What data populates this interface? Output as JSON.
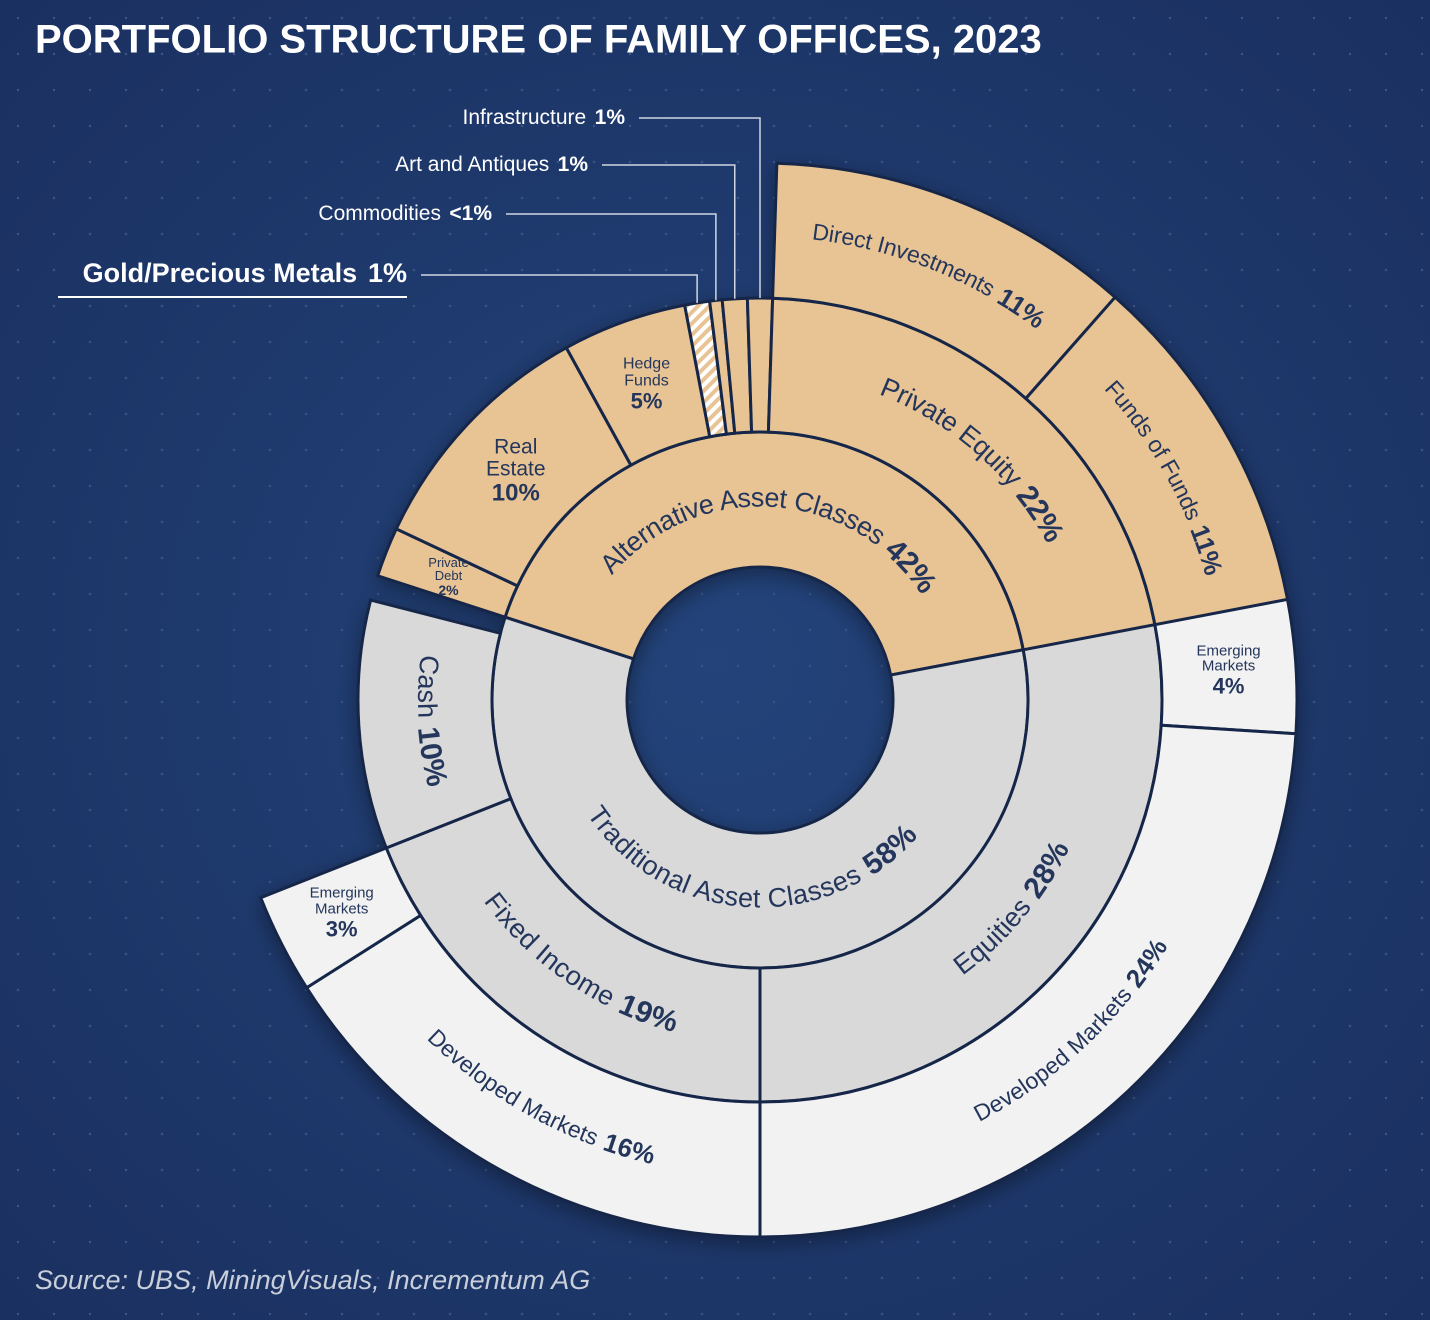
{
  "chart_data": {
    "type": "sunburst",
    "title": "PORTFOLIO STRUCTURE OF FAMILY OFFICES, 2023",
    "source": "Source: UBS, MiningVisuals, Incrementum AG",
    "nodes": [
      {
        "name": "Alternative Asset Classes",
        "value": 42,
        "value_label": "42%",
        "color": "#e8c494",
        "children": [
          {
            "name": "Private Debt",
            "value": 2,
            "value_label": "2%",
            "color": "#e8c494"
          },
          {
            "name": "Real Estate",
            "value": 10,
            "value_label": "10%",
            "color": "#e8c494"
          },
          {
            "name": "Hedge Funds",
            "value": 5,
            "value_label": "5%",
            "color": "#e8c494"
          },
          {
            "name": "Gold/Precious Metals",
            "value": 1,
            "value_label": "1%",
            "color": "#e8c494",
            "pattern": "hatch"
          },
          {
            "name": "Commodities",
            "value": 0.5,
            "value_label": "<1%",
            "color": "#e8c494"
          },
          {
            "name": "Art and Antiques",
            "value": 1,
            "value_label": "1%",
            "color": "#e8c494"
          },
          {
            "name": "Infrastructure",
            "value": 1,
            "value_label": "1%",
            "color": "#e8c494"
          },
          {
            "name": "Private Equity",
            "value": 22,
            "value_label": "22%",
            "color": "#e8c494",
            "children": [
              {
                "name": "Direct Investments",
                "value": 11,
                "value_label": "11%",
                "color": "#e8c494"
              },
              {
                "name": "Funds of Funds",
                "value": 11,
                "value_label": "11%",
                "color": "#e8c494"
              }
            ]
          }
        ]
      },
      {
        "name": "Traditional Asset Classes",
        "value": 58,
        "value_label": "58%",
        "color": "#d9d9d9",
        "children": [
          {
            "name": "Equities",
            "value": 28,
            "value_label": "28%",
            "color": "#d9d9d9",
            "children": [
              {
                "name": "Emerging Markets",
                "value": 4,
                "value_label": "4%",
                "color": "#f2f2f2"
              },
              {
                "name": "Developed Markets",
                "value": 24,
                "value_label": "24%",
                "color": "#f2f2f2"
              }
            ]
          },
          {
            "name": "Fixed Income",
            "value": 19,
            "value_label": "19%",
            "color": "#d9d9d9",
            "children": [
              {
                "name": "Developed Markets",
                "value": 16,
                "value_label": "16%",
                "color": "#f2f2f2"
              },
              {
                "name": "Emerging Markets",
                "value": 3,
                "value_label": "3%",
                "color": "#f2f2f2"
              }
            ]
          },
          {
            "name": "Cash",
            "value": 10,
            "value_label": "10%",
            "color": "#d9d9d9"
          }
        ]
      }
    ]
  }
}
